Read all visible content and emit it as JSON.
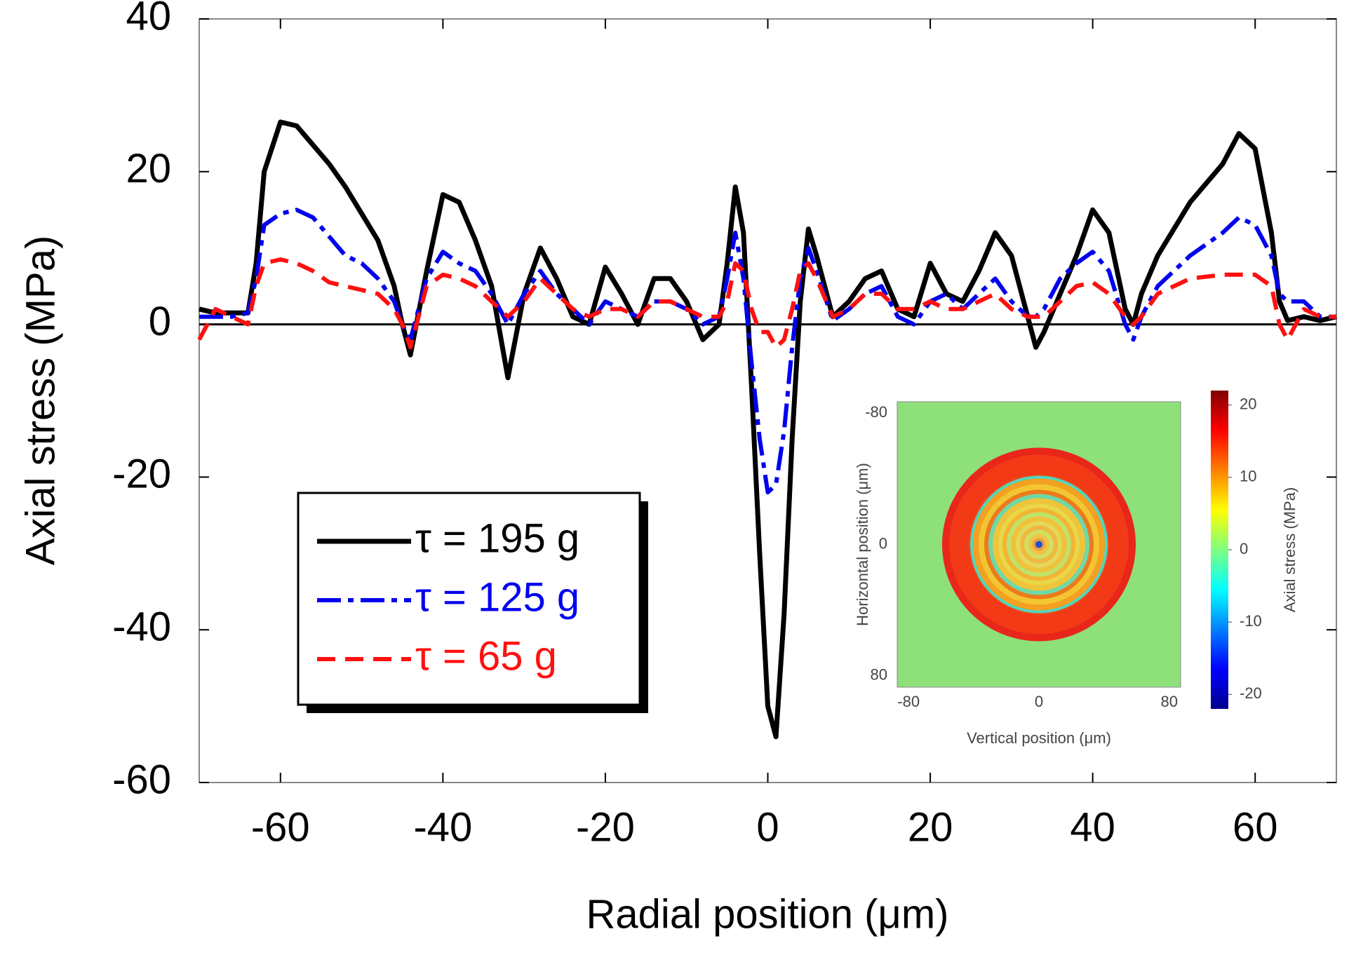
{
  "chart_data": {
    "type": "line",
    "xlabel": "Radial position (μm)",
    "ylabel": "Axial stress (MPa)",
    "xlim": [
      -70,
      70
    ],
    "ylim": [
      -60,
      40
    ],
    "xticks": [
      -60,
      -40,
      -20,
      0,
      20,
      40,
      60
    ],
    "yticks": [
      -60,
      -40,
      -20,
      0,
      20,
      40
    ],
    "reference_line": 0,
    "legend": "lower left",
    "x": [
      -70,
      -68,
      -66,
      -64,
      -63,
      -62,
      -60,
      -58,
      -56,
      -54,
      -52,
      -50,
      -48,
      -46,
      -45,
      -44,
      -42,
      -40,
      -38,
      -36,
      -34,
      -32,
      -30,
      -28,
      -26,
      -24,
      -22,
      -20,
      -18,
      -16,
      -14,
      -12,
      -10,
      -8,
      -6,
      -5,
      -4,
      -3,
      -2,
      -1,
      0,
      1,
      2,
      3,
      4,
      5,
      6,
      8,
      10,
      12,
      14,
      16,
      18,
      20,
      22,
      24,
      26,
      28,
      30,
      32,
      33,
      34,
      36,
      38,
      40,
      42,
      44,
      45,
      46,
      48,
      52,
      56,
      58,
      60,
      62,
      63,
      64,
      66,
      68,
      70
    ],
    "series": [
      {
        "name": "τ = 195 g",
        "color": "#000000",
        "linestyle": "solid",
        "values": [
          2,
          1.5,
          1.5,
          1.5,
          8,
          20,
          26.5,
          26,
          23.5,
          21,
          18,
          14.5,
          11,
          5,
          0,
          -4,
          7,
          17,
          16,
          11,
          5,
          -7,
          4,
          10,
          6,
          1,
          0,
          7.5,
          4,
          0,
          6,
          6,
          3,
          -2,
          0,
          8,
          18,
          12,
          -8,
          -30,
          -50,
          -54,
          -38,
          -15,
          3,
          12.5,
          9,
          1,
          3,
          6,
          7,
          2,
          1,
          8,
          4,
          3,
          7,
          12,
          9,
          1,
          -3,
          -1,
          4,
          9,
          15,
          12,
          2,
          0,
          4,
          9,
          16,
          21,
          25,
          23,
          12,
          3,
          0.5,
          1,
          0.5,
          1
        ]
      },
      {
        "name": "τ = 125 g",
        "color": "#0000ee",
        "linestyle": "dashdot",
        "values": [
          1,
          1,
          1,
          1.5,
          6,
          13,
          14.5,
          15,
          14,
          11.5,
          9,
          8,
          6,
          3,
          0,
          -2,
          6,
          9.5,
          8,
          7,
          4,
          0,
          4,
          7,
          4,
          2,
          0,
          3,
          2,
          1,
          3,
          3,
          2,
          0,
          1,
          6,
          12,
          6,
          -5,
          -15,
          -22,
          -21,
          -14,
          -3,
          6,
          10,
          7,
          0.5,
          2,
          4,
          5,
          1,
          0,
          3,
          4,
          2,
          4,
          6,
          3,
          1,
          1,
          2,
          6,
          8,
          9.5,
          7,
          0,
          -2,
          1,
          5,
          9,
          12,
          14,
          13,
          9,
          4,
          3,
          3,
          1,
          1
        ]
      },
      {
        "name": "τ = 65 g",
        "color": "#ff1010",
        "linestyle": "dashed",
        "values": [
          -2,
          2,
          1,
          0,
          5,
          8,
          8.5,
          8,
          7,
          5.5,
          5,
          4.5,
          4,
          2,
          0,
          -3,
          5,
          6.5,
          6,
          5,
          3,
          1,
          3,
          6,
          4,
          2,
          1,
          2,
          2,
          1,
          3,
          3,
          2,
          1,
          1,
          3,
          8,
          7,
          2,
          -1,
          -1,
          -3,
          -2,
          2,
          7,
          8,
          6,
          1,
          2,
          4,
          4,
          2,
          2,
          3,
          2,
          2,
          3,
          4,
          2,
          1,
          1,
          1,
          3,
          5,
          5.5,
          4,
          1,
          0,
          1,
          4,
          6,
          6.5,
          6.5,
          6.5,
          5,
          0,
          -2,
          2,
          1,
          1
        ]
      }
    ],
    "inset": {
      "xlabel": "Vertical position (μm)",
      "ylabel": "Horizontal position (μm)",
      "colorbar_label": "Axial stress (MPa)",
      "xlim": [
        -87,
        87
      ],
      "ylim": [
        -87,
        87
      ],
      "xticks": [
        -80,
        0,
        80
      ],
      "yticks": [
        -80,
        0,
        80
      ],
      "clim": [
        -22,
        22
      ],
      "colorbar_ticks": [
        20,
        10,
        0,
        -10,
        -20
      ]
    }
  }
}
